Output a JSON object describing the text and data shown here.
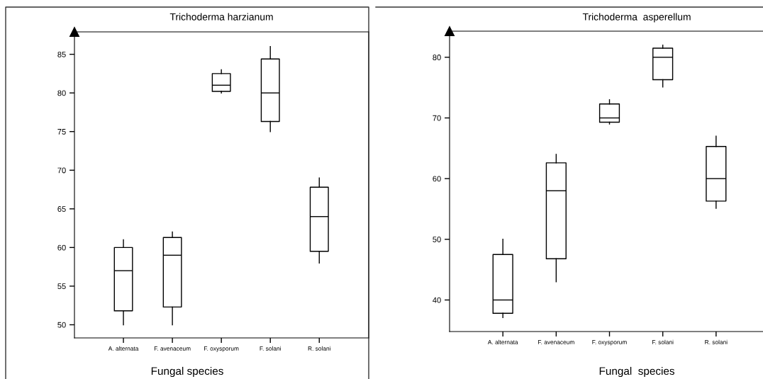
{
  "chart_data": [
    {
      "type": "box",
      "title": "Trichoderma harzianum",
      "xlabel": "Fungal species",
      "categories": [
        "A. alternata",
        "F. avenaceum",
        "F. oxysporum",
        "F. solani",
        "R. solani"
      ],
      "boxes": [
        {
          "low": 50,
          "q1": 51.8,
          "median": 57,
          "q3": 60,
          "high": 61
        },
        {
          "low": 50,
          "q1": 52.3,
          "median": 59,
          "q3": 61.3,
          "high": 62
        },
        {
          "low": 80,
          "q1": 80.2,
          "median": 81,
          "q3": 82.5,
          "high": 83
        },
        {
          "low": 75,
          "q1": 76.3,
          "median": 80,
          "q3": 84.4,
          "high": 86
        },
        {
          "low": 58,
          "q1": 59.5,
          "median": 64,
          "q3": 67.8,
          "high": 69
        }
      ],
      "color": "#000000",
      "ylim": [
        48.3,
        87.9
      ],
      "yticks": [
        50,
        55,
        60,
        65,
        70,
        75,
        80,
        85
      ],
      "grid": false
    },
    {
      "type": "box",
      "title": "Trichoderma  asperellum",
      "xlabel": "Fungal  species",
      "categories": [
        "A. alternata",
        "F. avenaceum",
        "F. oxysporum",
        "F. solani",
        "R. solani"
      ],
      "boxes": [
        {
          "low": 37.1,
          "q1": 37.8,
          "median": 40,
          "q3": 47.5,
          "high": 50
        },
        {
          "low": 43,
          "q1": 46.8,
          "median": 58,
          "q3": 62.6,
          "high": 64
        },
        {
          "low": 69,
          "q1": 69.3,
          "median": 70,
          "q3": 72.3,
          "high": 73
        },
        {
          "low": 75.1,
          "q1": 76.3,
          "median": 80,
          "q3": 81.5,
          "high": 82
        },
        {
          "low": 55.1,
          "q1": 56.3,
          "median": 60,
          "q3": 65.3,
          "high": 67
        }
      ],
      "color": "#000000",
      "ylim": [
        34.8,
        84.3
      ],
      "yticks": [
        40,
        50,
        60,
        70,
        80
      ],
      "grid": false
    }
  ]
}
